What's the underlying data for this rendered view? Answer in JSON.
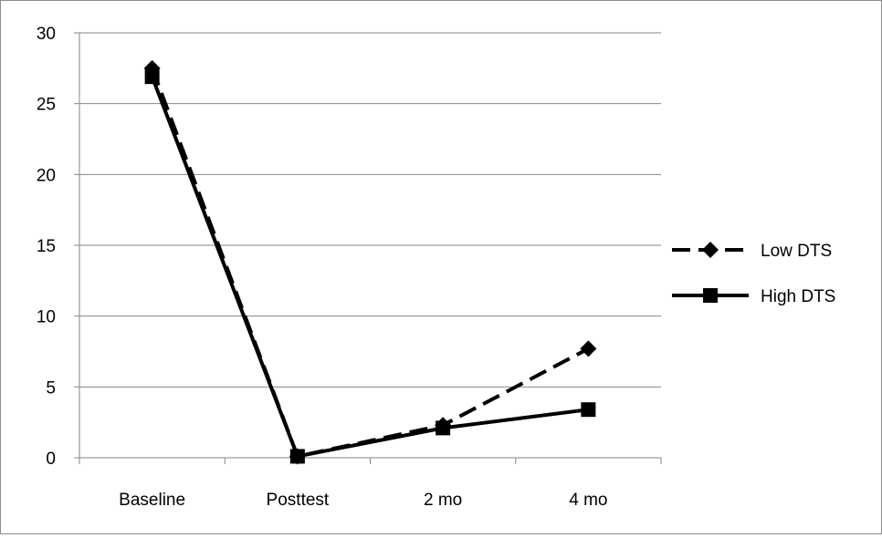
{
  "chart_data": {
    "type": "line",
    "title": "",
    "xlabel": "",
    "ylabel": "",
    "categories": [
      "Baseline",
      "Posttest",
      "2 mo",
      "4 mo"
    ],
    "ylim": [
      0,
      30
    ],
    "yticks": [
      0,
      5,
      10,
      15,
      20,
      25,
      30
    ],
    "grid": true,
    "legend": "right",
    "series": [
      {
        "name": "Low DTS",
        "values": [
          27.5,
          0.1,
          2.3,
          7.7
        ],
        "color": "#000000",
        "dash": "dashed",
        "marker": "diamond"
      },
      {
        "name": "High DTS",
        "values": [
          26.9,
          0.1,
          2.1,
          3.4
        ],
        "color": "#000000",
        "dash": "solid",
        "marker": "square"
      }
    ],
    "gridline_color": "#868686"
  }
}
